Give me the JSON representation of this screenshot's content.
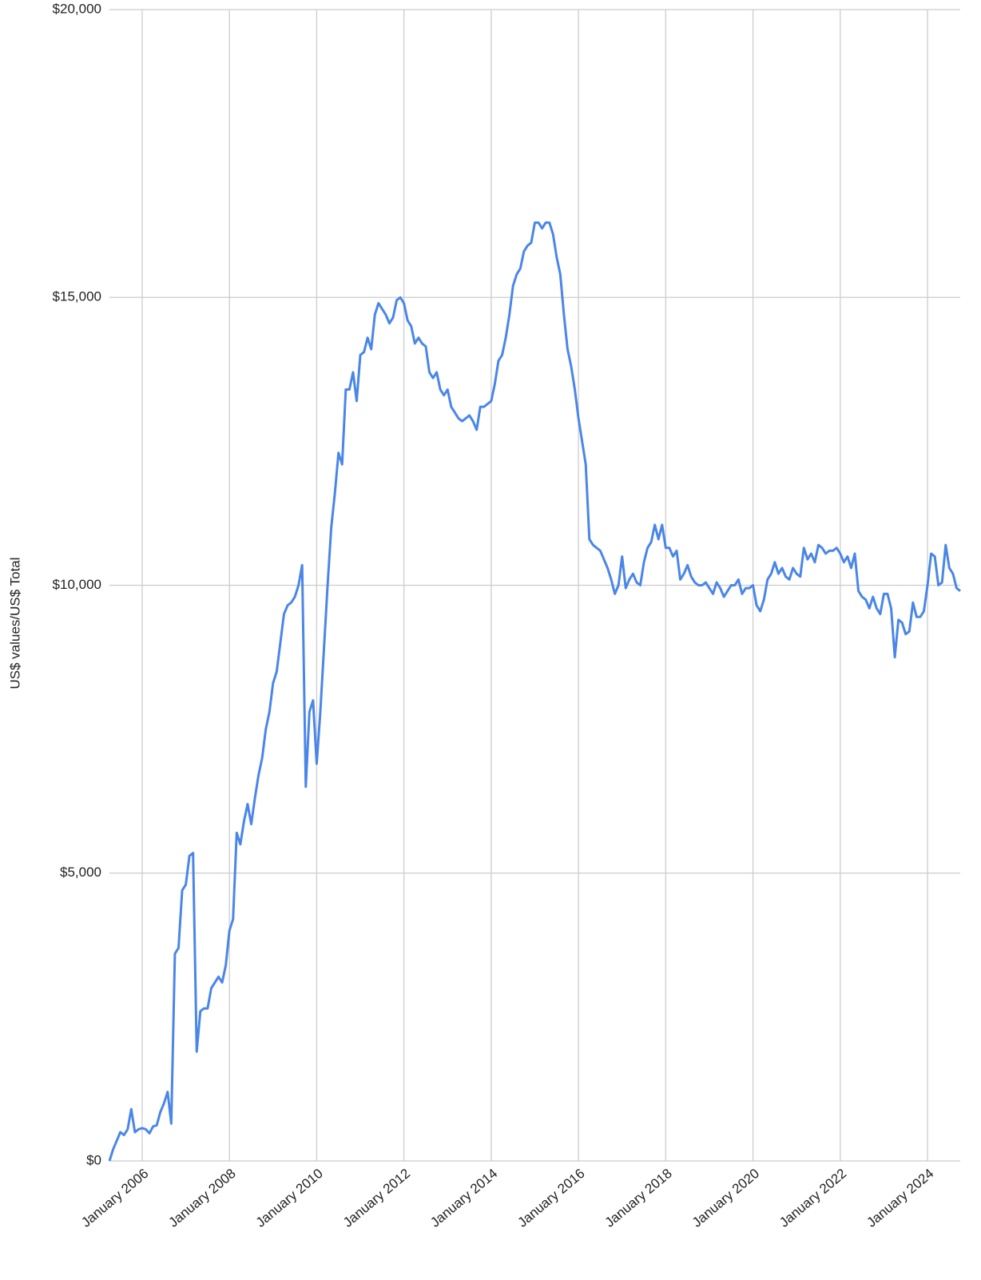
{
  "chart_data": {
    "type": "line",
    "y_label": "US$ values/US$ Total",
    "x": [
      "2005-04",
      "2005-05",
      "2005-06",
      "2005-07",
      "2005-08",
      "2005-09",
      "2005-10",
      "2005-11",
      "2005-12",
      "2006-01",
      "2006-02",
      "2006-03",
      "2006-04",
      "2006-05",
      "2006-06",
      "2006-07",
      "2006-08",
      "2006-09",
      "2006-10",
      "2006-11",
      "2006-12",
      "2007-01",
      "2007-02",
      "2007-03",
      "2007-04",
      "2007-05",
      "2007-06",
      "2007-07",
      "2007-08",
      "2007-09",
      "2007-10",
      "2007-11",
      "2007-12",
      "2008-01",
      "2008-02",
      "2008-03",
      "2008-04",
      "2008-05",
      "2008-06",
      "2008-07",
      "2008-08",
      "2008-09",
      "2008-10",
      "2008-11",
      "2008-12",
      "2009-01",
      "2009-02",
      "2009-03",
      "2009-04",
      "2009-05",
      "2009-06",
      "2009-07",
      "2009-08",
      "2009-09",
      "2009-10",
      "2009-11",
      "2009-12",
      "2010-01",
      "2010-02",
      "2010-03",
      "2010-04",
      "2010-05",
      "2010-06",
      "2010-07",
      "2010-08",
      "2010-09",
      "2010-10",
      "2010-11",
      "2010-12",
      "2011-01",
      "2011-02",
      "2011-03",
      "2011-04",
      "2011-05",
      "2011-06",
      "2011-07",
      "2011-08",
      "2011-09",
      "2011-10",
      "2011-11",
      "2011-12",
      "2012-01",
      "2012-02",
      "2012-03",
      "2012-04",
      "2012-05",
      "2012-06",
      "2012-07",
      "2012-08",
      "2012-09",
      "2012-10",
      "2012-11",
      "2012-12",
      "2013-01",
      "2013-02",
      "2013-03",
      "2013-04",
      "2013-05",
      "2013-06",
      "2013-07",
      "2013-08",
      "2013-09",
      "2013-10",
      "2013-11",
      "2013-12",
      "2014-01",
      "2014-02",
      "2014-03",
      "2014-04",
      "2014-05",
      "2014-06",
      "2014-07",
      "2014-08",
      "2014-09",
      "2014-10",
      "2014-11",
      "2014-12",
      "2015-01",
      "2015-02",
      "2015-03",
      "2015-04",
      "2015-05",
      "2015-06",
      "2015-07",
      "2015-08",
      "2015-09",
      "2015-10",
      "2015-11",
      "2015-12",
      "2016-01",
      "2016-02",
      "2016-03",
      "2016-04",
      "2016-05",
      "2016-06",
      "2016-07",
      "2016-08",
      "2016-09",
      "2016-10",
      "2016-11",
      "2016-12",
      "2017-01",
      "2017-02",
      "2017-03",
      "2017-04",
      "2017-05",
      "2017-06",
      "2017-07",
      "2017-08",
      "2017-09",
      "2017-10",
      "2017-11",
      "2017-12",
      "2018-01",
      "2018-02",
      "2018-03",
      "2018-04",
      "2018-05",
      "2018-06",
      "2018-07",
      "2018-08",
      "2018-09",
      "2018-10",
      "2018-11",
      "2018-12",
      "2019-01",
      "2019-02",
      "2019-03",
      "2019-04",
      "2019-05",
      "2019-06",
      "2019-07",
      "2019-08",
      "2019-09",
      "2019-10",
      "2019-11",
      "2019-12",
      "2020-01",
      "2020-02",
      "2020-03",
      "2020-04",
      "2020-05",
      "2020-06",
      "2020-07",
      "2020-08",
      "2020-09",
      "2020-10",
      "2020-11",
      "2020-12",
      "2021-01",
      "2021-02",
      "2021-03",
      "2021-04",
      "2021-05",
      "2021-06",
      "2021-07",
      "2021-08",
      "2021-09",
      "2021-10",
      "2021-11",
      "2021-12",
      "2022-01",
      "2022-02",
      "2022-03",
      "2022-04",
      "2022-05",
      "2022-06",
      "2022-07",
      "2022-08",
      "2022-09",
      "2022-10",
      "2022-11",
      "2022-12",
      "2023-01",
      "2023-02",
      "2023-03",
      "2023-04",
      "2023-05",
      "2023-06",
      "2023-07",
      "2023-08",
      "2023-09",
      "2023-10",
      "2023-11",
      "2023-12",
      "2024-01",
      "2024-02",
      "2024-03",
      "2024-04",
      "2024-05",
      "2024-06",
      "2024-07",
      "2024-08",
      "2024-09",
      "2024-10"
    ],
    "series": [
      {
        "color": "#4a86e8",
        "values": [
          0,
          200,
          350,
          500,
          450,
          550,
          900,
          500,
          550,
          570,
          550,
          480,
          600,
          620,
          850,
          1000,
          1200,
          650,
          3600,
          3700,
          4700,
          4800,
          5300,
          5350,
          1900,
          2600,
          2650,
          2650,
          3000,
          3100,
          3200,
          3100,
          3400,
          4000,
          4200,
          5700,
          5500,
          5900,
          6200,
          5850,
          6300,
          6700,
          7000,
          7500,
          7800,
          8300,
          8500,
          9000,
          9500,
          9650,
          9700,
          9800,
          10000,
          10350,
          6500,
          7800,
          8000,
          6900,
          7800,
          8900,
          10000,
          11000,
          11600,
          12300,
          12100,
          13400,
          13400,
          13700,
          13200,
          14000,
          14050,
          14300,
          14100,
          14700,
          14900,
          14800,
          14700,
          14550,
          14650,
          14950,
          15000,
          14900,
          14600,
          14500,
          14200,
          14300,
          14200,
          14150,
          13700,
          13600,
          13700,
          13400,
          13300,
          13400,
          13100,
          13000,
          12900,
          12850,
          12900,
          12950,
          12850,
          12700,
          13100,
          13100,
          13150,
          13200,
          13500,
          13900,
          14000,
          14300,
          14700,
          15200,
          15400,
          15500,
          15800,
          15900,
          15950,
          16300,
          16300,
          16200,
          16300,
          16300,
          16100,
          15700,
          15400,
          14700,
          14100,
          13800,
          13400,
          12900,
          12500,
          12100,
          10800,
          10700,
          10650,
          10600,
          10450,
          10300,
          10100,
          9850,
          10000,
          10500,
          9950,
          10100,
          10200,
          10050,
          10000,
          10400,
          10650,
          10750,
          11050,
          10800,
          11050,
          10650,
          10650,
          10500,
          10600,
          10100,
          10200,
          10350,
          10150,
          10050,
          10000,
          10000,
          10050,
          9950,
          9850,
          10050,
          9950,
          9800,
          9900,
          10000,
          10000,
          10100,
          9850,
          9950,
          9950,
          10000,
          9650,
          9550,
          9750,
          10100,
          10200,
          10400,
          10200,
          10300,
          10150,
          10100,
          10300,
          10200,
          10150,
          10650,
          10450,
          10550,
          10400,
          10700,
          10650,
          10550,
          10600,
          10600,
          10650,
          10550,
          10400,
          10500,
          10300,
          10550,
          9900,
          9800,
          9750,
          9600,
          9800,
          9600,
          9500,
          9850,
          9850,
          9600,
          8750,
          9400,
          9350,
          9150,
          9200,
          9700,
          9450,
          9450,
          9550,
          10000,
          10550,
          10500,
          10000,
          10050,
          10700,
          10300,
          10200,
          9950,
          9900
        ]
      }
    ],
    "xlim": [
      "2005-04",
      "2024-10"
    ],
    "xticks": [
      {
        "value": "2006-01",
        "label": "January 2006"
      },
      {
        "value": "2008-01",
        "label": "January 2008"
      },
      {
        "value": "2010-01",
        "label": "January 2010"
      },
      {
        "value": "2012-01",
        "label": "January 2012"
      },
      {
        "value": "2014-01",
        "label": "January 2014"
      },
      {
        "value": "2016-01",
        "label": "January 2016"
      },
      {
        "value": "2018-01",
        "label": "January 2018"
      },
      {
        "value": "2020-01",
        "label": "January 2020"
      },
      {
        "value": "2022-01",
        "label": "January 2022"
      },
      {
        "value": "2024-01",
        "label": "January 2024"
      }
    ],
    "ylim": [
      0,
      20000
    ],
    "yticks": [
      {
        "value": 0,
        "label": "$0"
      },
      {
        "value": 5000,
        "label": "$5,000"
      },
      {
        "value": 10000,
        "label": "$10,000"
      },
      {
        "value": 15000,
        "label": "$15,000"
      },
      {
        "value": 20000,
        "label": "$20,000"
      }
    ],
    "grid": true
  }
}
